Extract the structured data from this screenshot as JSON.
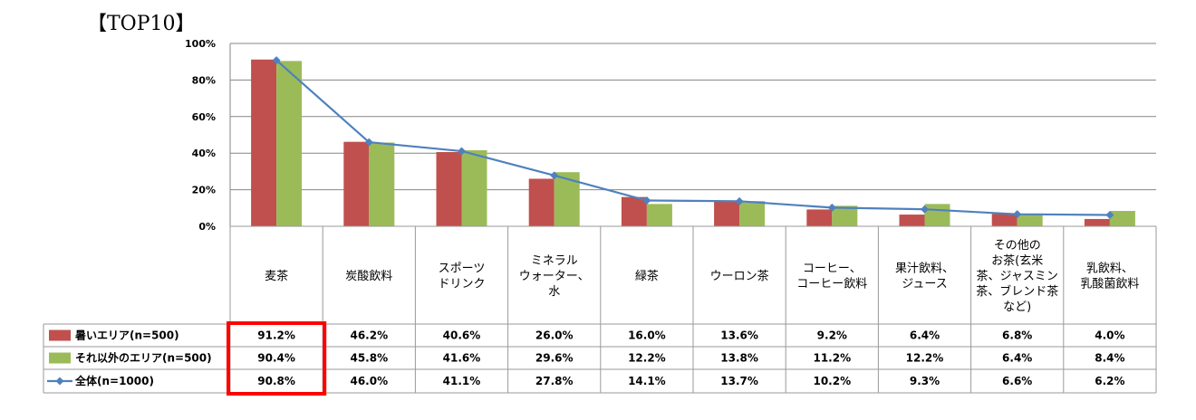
{
  "title": "【TOP10】",
  "colors": {
    "hot": "#c0504d",
    "other": "#9bbb59",
    "all": "#4f81bd",
    "highlight": "#ff0000",
    "grid": "#868686"
  },
  "chart_data": {
    "type": "bar",
    "categories": [
      [
        "麦茶"
      ],
      [
        "炭酸飲料"
      ],
      [
        "スポーツ",
        "ドリンク"
      ],
      [
        "ミネラル",
        "ウォーター、",
        "水"
      ],
      [
        "緑茶"
      ],
      [
        "ウーロン茶"
      ],
      [
        "コーヒー、",
        "コーヒー飲料"
      ],
      [
        "果汁飲料、",
        "ジュース"
      ],
      [
        "その他の",
        "お茶(玄米",
        "茶、ジャスミン",
        "茶、ブレンド茶",
        "など)"
      ],
      [
        "乳飲料、",
        "乳酸菌飲料"
      ]
    ],
    "series": [
      {
        "name": "暑いエリア(n=500)",
        "kind": "bar",
        "values": [
          91.2,
          46.2,
          40.6,
          26.0,
          16.0,
          13.6,
          9.2,
          6.4,
          6.8,
          4.0
        ],
        "labels": [
          "91.2%",
          "46.2%",
          "40.6%",
          "26.0%",
          "16.0%",
          "13.6%",
          "9.2%",
          "6.4%",
          "6.8%",
          "4.0%"
        ]
      },
      {
        "name": "それ以外のエリア(n=500)",
        "kind": "bar",
        "values": [
          90.4,
          45.8,
          41.6,
          29.6,
          12.2,
          13.8,
          11.2,
          12.2,
          6.4,
          8.4
        ],
        "labels": [
          "90.4%",
          "45.8%",
          "41.6%",
          "29.6%",
          "12.2%",
          "13.8%",
          "11.2%",
          "12.2%",
          "6.4%",
          "8.4%"
        ]
      },
      {
        "name": "全体(n=1000)",
        "kind": "line",
        "values": [
          90.8,
          46.0,
          41.1,
          27.8,
          14.1,
          13.7,
          10.2,
          9.3,
          6.6,
          6.2
        ],
        "labels": [
          "90.8%",
          "46.0%",
          "41.1%",
          "27.8%",
          "14.1%",
          "13.7%",
          "10.2%",
          "9.3%",
          "6.6%",
          "6.2%"
        ]
      }
    ],
    "ylim": [
      0,
      100
    ],
    "yticks": [
      "0%",
      "20%",
      "40%",
      "60%",
      "80%",
      "100%"
    ],
    "grid": true,
    "highlight_column": 0
  }
}
